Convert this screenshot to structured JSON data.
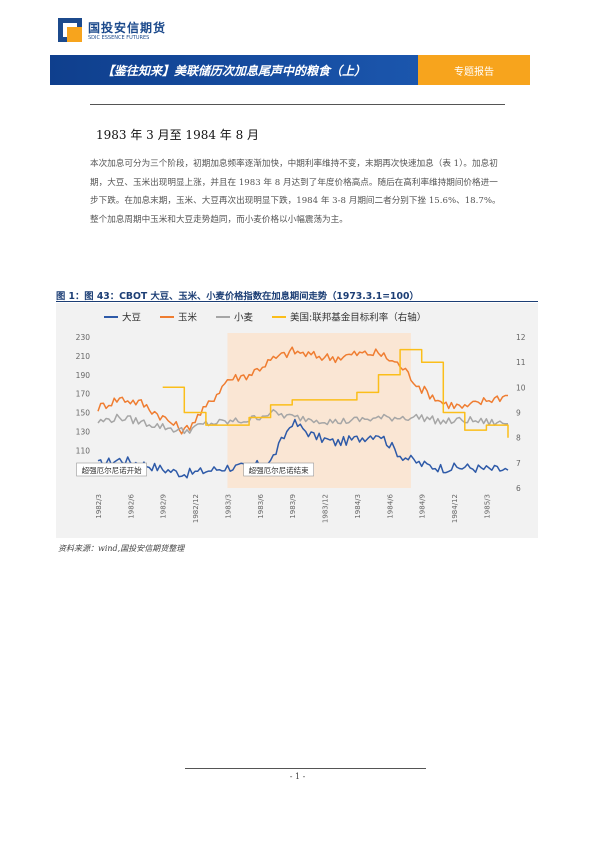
{
  "logo": {
    "name_cn": "国投安信期货",
    "name_en": "SDIC ESSENCE FUTURES"
  },
  "header": {
    "title": "【鉴往知来】美联储历次加息尾声中的粮食（上）",
    "tab": "专题报告"
  },
  "section": {
    "heading": "1983 年 3 月至 1984 年 8 月",
    "paragraph": "本次加息可分为三个阶段，初期加息频率逐渐加快，中期利率维持不变，末期再次快速加息（表 1）。加息初期，大豆、玉米出现明显上涨，并且在 1983 年 8 月达到了年度价格高点。随后在高利率维持期间价格进一步下跌。在加息末期，玉米、大豆再次出现明显下跌，1984 年 3-8 月期间二者分别下挫 15.6%、18.7%。整个加息周期中玉米和大豆走势趋同，而小麦价格以小幅震荡为主。"
  },
  "figure": {
    "title": "图 1：图 43：CBOT 大豆、玉米、小麦价格指数在加息期间走势（1973.3.1=100）",
    "source": "资料来源：wind,国投安信期货整理"
  },
  "footer": {
    "page": "- 1 -"
  },
  "chart_data": {
    "type": "line",
    "legend_position": "top",
    "grid": false,
    "x": [
      "1982/3",
      "1982/5",
      "1982/7",
      "1982/9",
      "1982/11",
      "1983/1",
      "1983/3",
      "1983/5",
      "1983/7",
      "1983/9",
      "1983/11",
      "1984/1",
      "1984/3",
      "1984/5",
      "1984/7",
      "1984/9",
      "1984/11",
      "1985/1",
      "1985/3",
      "1985/5"
    ],
    "x_tick_labels": [
      "1982/3",
      "1982/6",
      "1982/9",
      "1982/12",
      "1983/3",
      "1983/6",
      "1983/9",
      "1983/12",
      "1984/3",
      "1984/6",
      "1984/9",
      "1984/12",
      "1985/3"
    ],
    "y_left": {
      "min": 70,
      "max": 230,
      "ticks": [
        90,
        110,
        130,
        150,
        170,
        190,
        210,
        230
      ]
    },
    "y_right": {
      "min": 6,
      "max": 12,
      "ticks": [
        6,
        7,
        8,
        9,
        10,
        11,
        12
      ]
    },
    "shaded_period": {
      "from": "1983/3",
      "to": "1984/8"
    },
    "annotations": [
      {
        "text": "超强厄尔尼诺开始",
        "at": "1982/5"
      },
      {
        "text": "超强厄尔尼诺结束",
        "at": "1983/7"
      }
    ],
    "series": [
      {
        "name": "大豆",
        "color": "#2e5aa8",
        "axis": "left",
        "values": [
          95,
          100,
          96,
          90,
          85,
          88,
          92,
          92,
          98,
          140,
          125,
          118,
          122,
          128,
          105,
          95,
          91,
          92,
          90,
          89
        ]
      },
      {
        "name": "玉米",
        "color": "#ef7d31",
        "axis": "left",
        "values": [
          155,
          165,
          160,
          145,
          130,
          155,
          185,
          190,
          205,
          215,
          210,
          208,
          212,
          213,
          200,
          175,
          160,
          155,
          163,
          168
        ]
      },
      {
        "name": "小麦",
        "color": "#a6a6a6",
        "axis": "left",
        "values": [
          140,
          145,
          140,
          135,
          130,
          138,
          140,
          142,
          150,
          145,
          143,
          140,
          142,
          144,
          145,
          145,
          140,
          142,
          140,
          138
        ]
      },
      {
        "name": "美国:联邦基金目标利率（右轴）",
        "color": "#fbbe1a",
        "axis": "right",
        "values": [
          null,
          null,
          null,
          10.0,
          9.0,
          8.5,
          8.5,
          8.8,
          9.3,
          9.5,
          9.5,
          9.5,
          9.8,
          10.5,
          11.5,
          11.0,
          9.0,
          8.3,
          8.5,
          8.0
        ]
      }
    ]
  }
}
